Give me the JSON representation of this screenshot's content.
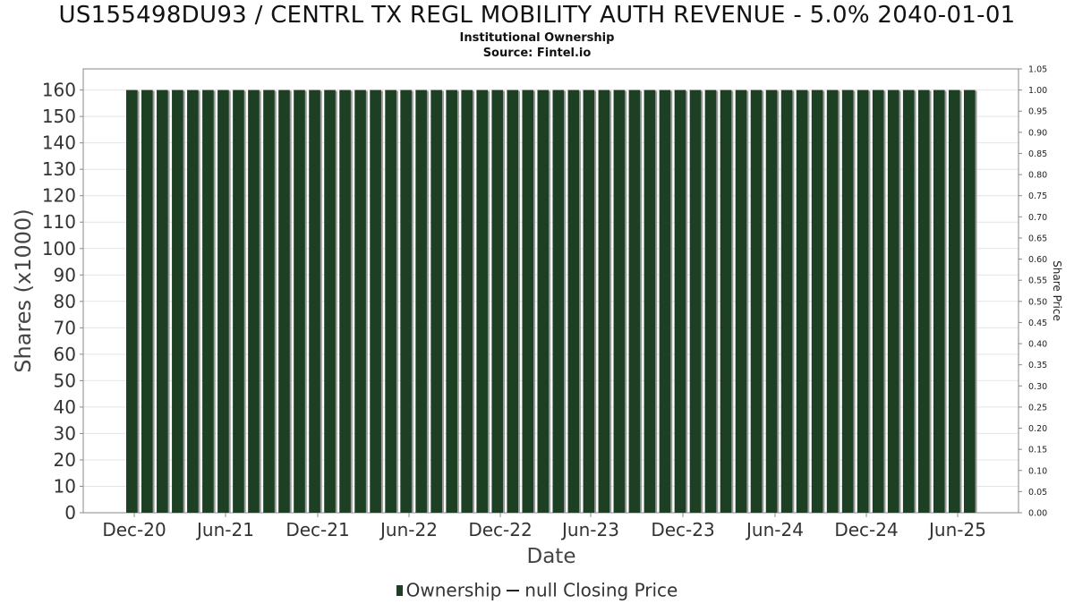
{
  "title": "US155498DU93 / CENTRL TX REGL MOBILITY AUTH REVENUE - 5.0% 2040-01-01",
  "subtitle_1": "Institutional Ownership",
  "subtitle_2": "Source: Fintel.io",
  "legend": {
    "ownership": "Ownership",
    "closing_price": "null Closing Price"
  },
  "colors": {
    "bar": "#1d4024",
    "bar_shadow": "#9a9a9a",
    "grid": "#e4e4e4",
    "axis": "#888888"
  },
  "chart_data": {
    "type": "bar",
    "x_start": "2020-12-01",
    "x_end": "2025-06-30",
    "x_tick_labels": [
      "Dec-20",
      "Jun-21",
      "Dec-21",
      "Jun-22",
      "Dec-22",
      "Jun-23",
      "Dec-23",
      "Jun-24",
      "Dec-24",
      "Jun-25"
    ],
    "xlabel": "Date",
    "ylabel": "Shares (x1000)",
    "ylim": [
      0,
      160
    ],
    "y_ticks": [
      0,
      10,
      20,
      30,
      40,
      50,
      60,
      70,
      80,
      90,
      100,
      110,
      120,
      130,
      140,
      150,
      160
    ],
    "y2label": "Share Price",
    "y2lim": [
      0,
      1.05
    ],
    "y2_ticks": [
      "0.00",
      "0.05",
      "0.10",
      "0.15",
      "0.20",
      "0.25",
      "0.30",
      "0.35",
      "0.40",
      "0.45",
      "0.50",
      "0.55",
      "0.60",
      "0.65",
      "0.70",
      "0.75",
      "0.80",
      "0.85",
      "0.90",
      "0.95",
      "1.00",
      "1.05"
    ],
    "grid": true,
    "legend_position": "bottom",
    "series": [
      {
        "name": "Ownership",
        "values": [
          160,
          160,
          160,
          160,
          160,
          160,
          160,
          160,
          160,
          160,
          160,
          160,
          160,
          160,
          160,
          160,
          160,
          160,
          160,
          160,
          160,
          160,
          160,
          160,
          160,
          160,
          160,
          160,
          160,
          160,
          160,
          160,
          160,
          160,
          160,
          160,
          160,
          160,
          160,
          160,
          160,
          160,
          160,
          160,
          160,
          160,
          160,
          160,
          160,
          160,
          160,
          160,
          160,
          160,
          160,
          160
        ]
      }
    ]
  }
}
